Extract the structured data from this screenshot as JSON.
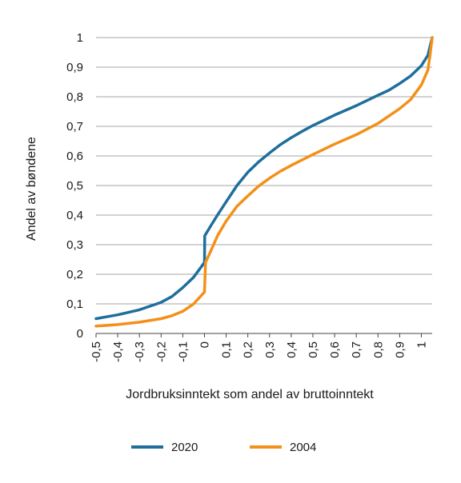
{
  "chart_data": {
    "type": "line",
    "title": "",
    "xlabel": "Jordbruksinntekt som andel av bruttoinntekt",
    "ylabel": "Andel av bøndene",
    "xlim": [
      -0.5,
      1.05
    ],
    "ylim": [
      0,
      1
    ],
    "x_ticks": [
      "-0,5",
      "-0,4",
      "-0,3",
      "-0,2",
      "-0,1",
      "0",
      "0,1",
      "0,2",
      "0,3",
      "0,4",
      "0,5",
      "0,6",
      "0,7",
      "0,8",
      "0,9",
      "1"
    ],
    "y_ticks": [
      "0",
      "0,1",
      "0,2",
      "0,3",
      "0,4",
      "0,5",
      "0,6",
      "0,7",
      "0,8",
      "0,9",
      "1"
    ],
    "grid": "horizontal",
    "legend_position": "bottom",
    "series": [
      {
        "name": "2020",
        "color": "#1f6e9c",
        "x": [
          -0.5,
          -0.4,
          -0.3,
          -0.2,
          -0.15,
          -0.1,
          -0.05,
          0,
          0.001,
          0.03,
          0.06,
          0.1,
          0.15,
          0.2,
          0.25,
          0.3,
          0.35,
          0.4,
          0.45,
          0.5,
          0.6,
          0.7,
          0.8,
          0.85,
          0.9,
          0.95,
          1.0,
          1.03,
          1.04,
          1.05
        ],
        "y": [
          0.05,
          0.063,
          0.08,
          0.105,
          0.125,
          0.155,
          0.19,
          0.24,
          0.33,
          0.365,
          0.4,
          0.445,
          0.5,
          0.545,
          0.58,
          0.61,
          0.638,
          0.662,
          0.683,
          0.703,
          0.738,
          0.77,
          0.805,
          0.822,
          0.845,
          0.87,
          0.905,
          0.94,
          0.97,
          1.0
        ]
      },
      {
        "name": "2004",
        "color": "#f39018",
        "x": [
          -0.5,
          -0.4,
          -0.3,
          -0.2,
          -0.15,
          -0.1,
          -0.05,
          0,
          0.005,
          0.03,
          0.06,
          0.1,
          0.15,
          0.2,
          0.25,
          0.3,
          0.35,
          0.4,
          0.5,
          0.6,
          0.7,
          0.8,
          0.9,
          0.95,
          1.0,
          1.03,
          1.04,
          1.05
        ],
        "y": [
          0.025,
          0.03,
          0.038,
          0.05,
          0.06,
          0.075,
          0.1,
          0.14,
          0.24,
          0.28,
          0.33,
          0.38,
          0.43,
          0.465,
          0.498,
          0.525,
          0.548,
          0.568,
          0.605,
          0.64,
          0.672,
          0.71,
          0.76,
          0.79,
          0.84,
          0.89,
          0.94,
          1.0
        ]
      }
    ]
  }
}
